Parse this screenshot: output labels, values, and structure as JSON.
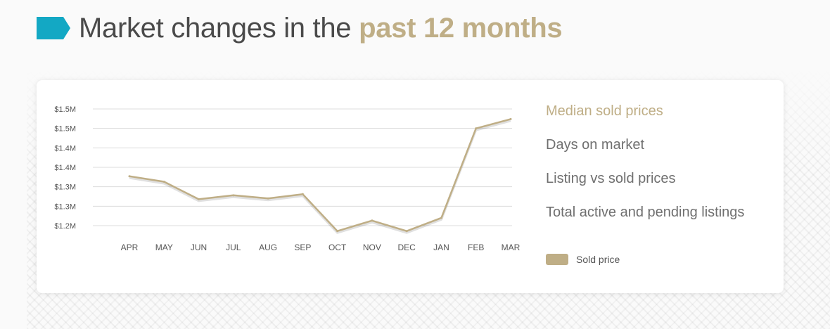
{
  "header": {
    "title_prefix": "Market changes in the ",
    "title_highlight": "past 12 months",
    "tag_icon": "tag-icon",
    "tag_color": "#13a8c4",
    "highlight_color": "#bfae86"
  },
  "metrics": {
    "items": [
      {
        "label": "Median sold prices",
        "active": true
      },
      {
        "label": "Days on market",
        "active": false
      },
      {
        "label": "Listing vs sold prices",
        "active": false
      },
      {
        "label": "Total active and pending listings",
        "active": false
      }
    ]
  },
  "chart_data": {
    "type": "line",
    "categories": [
      "APR",
      "MAY",
      "JUN",
      "JUL",
      "AUG",
      "SEP",
      "OCT",
      "NOV",
      "DEC",
      "JAN",
      "FEB",
      "MAR"
    ],
    "y_tick_labels": [
      "$1.5M",
      "$1.5M",
      "$1.4M",
      "$1.4M",
      "$1.3M",
      "$1.3M",
      "$1.2M"
    ],
    "ylim": [
      1200000,
      1500000
    ],
    "series": [
      {
        "name": "Sold price",
        "color": "#bfae86",
        "values": [
          1327000,
          1313000,
          1268000,
          1278000,
          1270000,
          1281000,
          1186000,
          1213000,
          1186000,
          1220000,
          1450000,
          1474000
        ]
      }
    ],
    "grid": true,
    "legend_position": "bottom-right",
    "title": "",
    "xlabel": "",
    "ylabel": ""
  }
}
